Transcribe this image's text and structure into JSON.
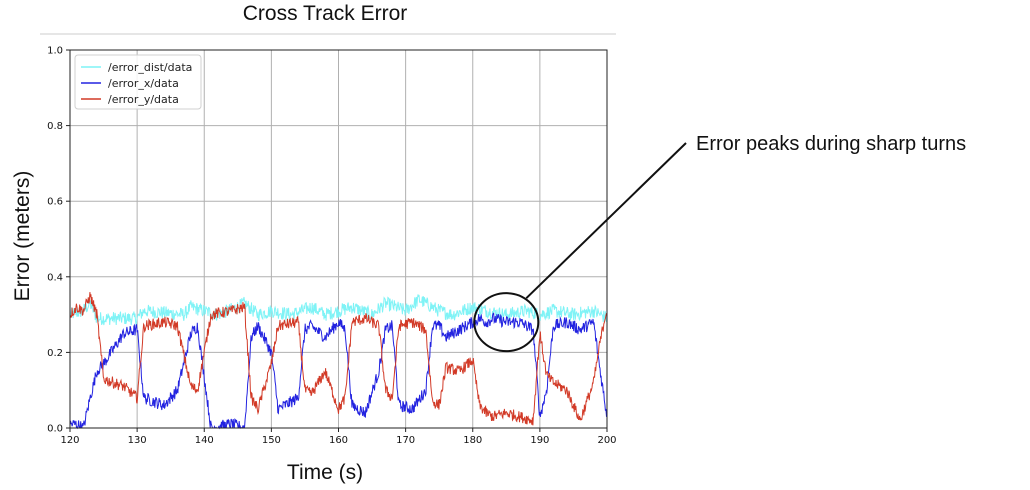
{
  "chart_data": {
    "type": "line",
    "title": "Cross Track Error",
    "xlabel": "Time (s)",
    "ylabel": "Error (meters)",
    "xlim": [
      120,
      200
    ],
    "ylim": [
      0.0,
      1.0
    ],
    "xticks": [
      120,
      130,
      140,
      150,
      160,
      170,
      180,
      190,
      200
    ],
    "yticks": [
      "0.0",
      "0.2",
      "0.4",
      "0.6",
      "0.8",
      "1.0"
    ],
    "grid": true,
    "legend_position": "top-left",
    "series": [
      {
        "name": "/error_dist/data",
        "color": "#7ff3f6",
        "x": [
          120,
          122,
          123,
          124,
          130,
          131,
          137,
          138,
          140,
          142,
          145,
          146,
          148,
          150,
          153,
          156,
          158,
          160,
          162,
          165,
          167,
          170,
          172,
          175,
          177,
          180,
          182,
          185,
          188,
          190,
          192,
          195,
          198,
          200
        ],
        "values": [
          0.3,
          0.31,
          0.33,
          0.29,
          0.29,
          0.31,
          0.3,
          0.32,
          0.31,
          0.3,
          0.32,
          0.33,
          0.3,
          0.31,
          0.3,
          0.32,
          0.3,
          0.31,
          0.32,
          0.3,
          0.33,
          0.31,
          0.34,
          0.31,
          0.3,
          0.32,
          0.31,
          0.3,
          0.31,
          0.3,
          0.31,
          0.3,
          0.31,
          0.29
        ]
      },
      {
        "name": "/error_x/data",
        "color": "#2323e0",
        "x": [
          120,
          121,
          122,
          123,
          124,
          125,
          128,
          130,
          131,
          134,
          136,
          138,
          139,
          141,
          144,
          146,
          147,
          148,
          150,
          151,
          154,
          155,
          156,
          158,
          160,
          161,
          162,
          164,
          166,
          167,
          168,
          169,
          171,
          173,
          174,
          175,
          176,
          178,
          180,
          181,
          182,
          183,
          185,
          187,
          189,
          190,
          191,
          192,
          194,
          196,
          198,
          199,
          200
        ],
        "values": [
          0.01,
          0.01,
          0.0,
          0.08,
          0.15,
          0.17,
          0.25,
          0.26,
          0.08,
          0.06,
          0.1,
          0.25,
          0.27,
          0.0,
          0.01,
          0.0,
          0.24,
          0.27,
          0.2,
          0.05,
          0.08,
          0.26,
          0.27,
          0.24,
          0.28,
          0.26,
          0.06,
          0.04,
          0.15,
          0.26,
          0.27,
          0.06,
          0.05,
          0.1,
          0.27,
          0.27,
          0.24,
          0.26,
          0.28,
          0.29,
          0.28,
          0.29,
          0.28,
          0.28,
          0.26,
          0.03,
          0.1,
          0.27,
          0.28,
          0.26,
          0.28,
          0.15,
          0.03
        ]
      },
      {
        "name": "/error_y/data",
        "color": "#d23a27",
        "x": [
          120,
          121,
          122,
          123,
          124,
          125,
          128,
          130,
          131,
          134,
          136,
          138,
          139,
          141,
          144,
          146,
          147,
          148,
          150,
          151,
          154,
          155,
          156,
          158,
          160,
          161,
          162,
          164,
          166,
          167,
          168,
          169,
          171,
          173,
          174,
          175,
          176,
          178,
          180,
          181,
          182,
          183,
          185,
          187,
          189,
          190,
          191,
          192,
          194,
          196,
          198,
          199,
          200
        ],
        "values": [
          0.3,
          0.32,
          0.31,
          0.35,
          0.3,
          0.13,
          0.11,
          0.08,
          0.27,
          0.28,
          0.27,
          0.11,
          0.1,
          0.3,
          0.31,
          0.32,
          0.08,
          0.05,
          0.17,
          0.27,
          0.28,
          0.1,
          0.09,
          0.15,
          0.05,
          0.08,
          0.28,
          0.29,
          0.27,
          0.1,
          0.08,
          0.27,
          0.28,
          0.26,
          0.07,
          0.06,
          0.16,
          0.15,
          0.18,
          0.06,
          0.04,
          0.03,
          0.04,
          0.03,
          0.02,
          0.25,
          0.14,
          0.12,
          0.1,
          0.02,
          0.12,
          0.23,
          0.32
        ]
      }
    ]
  },
  "annotation": {
    "text": "Error peaks during sharp turns",
    "x": 185,
    "y": 0.28
  }
}
